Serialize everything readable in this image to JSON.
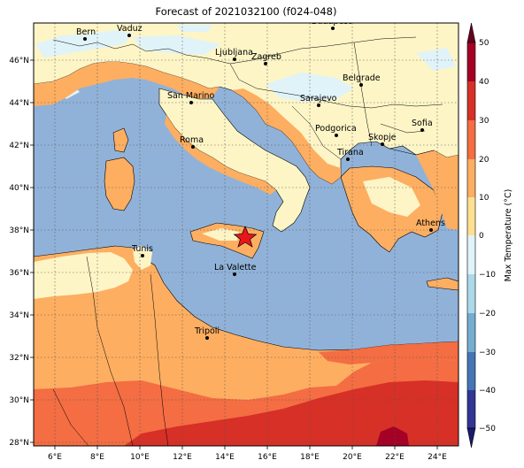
{
  "title": "Forecast of 2021032100 (f024-048)",
  "map": {
    "lon_ticks": [
      "6°E",
      "8°E",
      "10°E",
      "12°E",
      "14°E",
      "16°E",
      "18°E",
      "20°E",
      "22°E",
      "24°E"
    ],
    "lat_ticks": [
      "46°N",
      "44°N",
      "42°N",
      "40°N",
      "38°N",
      "36°N",
      "34°N",
      "32°N",
      "30°N",
      "28°N"
    ],
    "gridlines": true,
    "cities": [
      {
        "name": "Bern"
      },
      {
        "name": "Vaduz"
      },
      {
        "name": "Budapest"
      },
      {
        "name": "Ljubljana"
      },
      {
        "name": "Zagreb"
      },
      {
        "name": "Belgrade"
      },
      {
        "name": "San Marino"
      },
      {
        "name": "Sarajevo"
      },
      {
        "name": "Sofia"
      },
      {
        "name": "Podgorica"
      },
      {
        "name": "Skopje"
      },
      {
        "name": "Roma"
      },
      {
        "name": "Tirana"
      },
      {
        "name": "Athens"
      },
      {
        "name": "Tunis"
      },
      {
        "name": "La Valette"
      },
      {
        "name": "Tripoli"
      }
    ],
    "marker": "red-star"
  },
  "colorbar": {
    "label": "Max Temperature (°C)",
    "ticks": [
      "50",
      "40",
      "30",
      "20",
      "10",
      "0",
      "−10",
      "−20",
      "−30",
      "−40",
      "−50"
    ],
    "colors": [
      "#a50026",
      "#d73027",
      "#f46d43",
      "#fdae61",
      "#fee090",
      "#e0f3f8",
      "#abd9e9",
      "#74add1",
      "#4575b4",
      "#313695"
    ]
  }
}
